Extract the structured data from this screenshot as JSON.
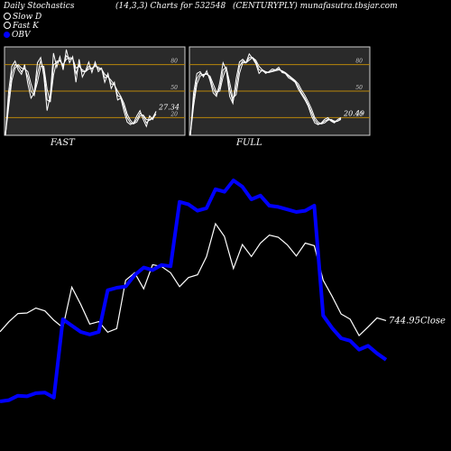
{
  "header": {
    "left": "Daily Stochastics",
    "middle": "(14,3,3) Charts for 532548",
    "right": "(CENTURYPLY) munafasutra.tbsjar.com"
  },
  "legend": [
    {
      "label": "Slow  D",
      "color": "#ffffff"
    },
    {
      "label": "Fast K",
      "color": "#ffffff"
    },
    {
      "label": "OBV",
      "color": "#0000ff"
    }
  ],
  "chart_data": [
    {
      "type": "line",
      "name": "FAST",
      "ylim": [
        0,
        100
      ],
      "ticks": [
        "80",
        "50",
        "20"
      ],
      "tick_values": [
        80,
        50,
        20
      ],
      "last_label": "27.34",
      "series": [
        {
          "values": [
            0,
            50,
            78,
            84,
            74,
            69,
            80,
            58,
            42,
            48,
            82,
            88,
            67,
            28,
            45,
            93,
            77,
            89,
            74,
            97,
            82,
            89,
            60,
            86,
            66,
            73,
            83,
            71,
            83,
            72,
            76,
            60,
            70,
            53,
            60,
            40,
            42,
            27,
            15,
            12,
            14,
            22,
            28,
            18,
            10,
            22,
            18,
            27
          ]
        },
        {
          "values": [
            0,
            40,
            70,
            80,
            78,
            72,
            76,
            66,
            50,
            45,
            70,
            84,
            74,
            40,
            38,
            80,
            82,
            85,
            78,
            90,
            86,
            87,
            70,
            80,
            72,
            72,
            78,
            75,
            80,
            75,
            75,
            65,
            67,
            58,
            58,
            45,
            43,
            32,
            20,
            14,
            13,
            18,
            25,
            22,
            14,
            18,
            20,
            27
          ]
        },
        {
          "values": [
            0,
            32,
            62,
            76,
            80,
            76,
            75,
            72,
            58,
            47,
            60,
            78,
            78,
            52,
            38,
            68,
            84,
            84,
            80,
            86,
            88,
            87,
            76,
            78,
            74,
            72,
            75,
            76,
            78,
            77,
            75,
            69,
            66,
            62,
            57,
            50,
            44,
            36,
            24,
            17,
            13,
            15,
            22,
            23,
            18,
            17,
            19,
            24
          ]
        }
      ]
    },
    {
      "type": "line",
      "name": "FULL",
      "ylim": [
        0,
        100
      ],
      "ticks": [
        "80",
        "50",
        "20"
      ],
      "tick_values": [
        80,
        50,
        20
      ],
      "last_label": "20.49",
      "series": [
        {
          "values": [
            0,
            48,
            70,
            72,
            66,
            73,
            62,
            48,
            44,
            60,
            82,
            74,
            44,
            36,
            64,
            83,
            86,
            82,
            92,
            87,
            81,
            70,
            74,
            70,
            72,
            75,
            74,
            77,
            71,
            70,
            65,
            63,
            60,
            52,
            46,
            40,
            33,
            22,
            14,
            12,
            14,
            18,
            20,
            16,
            14,
            18,
            20
          ]
        },
        {
          "values": [
            0,
            40,
            64,
            70,
            68,
            70,
            65,
            53,
            46,
            54,
            74,
            77,
            52,
            38,
            54,
            78,
            84,
            82,
            88,
            88,
            83,
            74,
            73,
            71,
            71,
            73,
            74,
            75,
            72,
            70,
            67,
            64,
            61,
            55,
            48,
            42,
            35,
            26,
            17,
            13,
            13,
            16,
            18,
            17,
            15,
            16,
            19
          ]
        },
        {
          "values": [
            0,
            33,
            58,
            67,
            69,
            69,
            67,
            58,
            49,
            50,
            66,
            76,
            60,
            42,
            46,
            70,
            82,
            82,
            85,
            88,
            85,
            78,
            74,
            72,
            71,
            72,
            73,
            74,
            73,
            71,
            68,
            65,
            62,
            58,
            51,
            45,
            38,
            30,
            20,
            15,
            13,
            14,
            17,
            18,
            16,
            16,
            18
          ]
        }
      ]
    },
    {
      "type": "line",
      "name": "Price and OBV",
      "last_label": "744.95Close",
      "series": [
        {
          "name": "Close",
          "values": [
            740.3,
            744.5,
            747.9,
            748.1,
            750.2,
            749.0,
            745.1,
            742.0,
            758.9,
            751.6,
            743.5,
            744.5,
            740.1,
            741.6,
            761.8,
            764.9,
            758.2,
            768.3,
            767.5,
            764.9,
            759.1,
            762.9,
            764.1,
            771.6,
            785.4,
            780.1,
            766.7,
            776.7,
            771.7,
            777.3,
            780.6,
            779.7,
            776.6,
            771.9,
            777.3,
            776.2,
            761.8,
            755.0,
            747.7,
            745.5,
            738.7,
            742.3,
            746.1,
            744.95
          ]
        },
        {
          "name": "OBV",
          "values": [
            12.0,
            13.0,
            16.5,
            16.0,
            18.5,
            19.0,
            15.0,
            77.0,
            72.0,
            67.0,
            65.0,
            67.0,
            100.0,
            102.0,
            103.0,
            112.0,
            118.0,
            116.0,
            120.0,
            119.0,
            170.0,
            168.0,
            163.0,
            165.0,
            180.0,
            178.0,
            187.0,
            182.0,
            172.0,
            175.0,
            167.0,
            166.0,
            164.0,
            162.0,
            163.0,
            167.0,
            80.0,
            70.0,
            62.0,
            60.0,
            53.0,
            56.0,
            50.0,
            45.0
          ]
        }
      ]
    }
  ]
}
